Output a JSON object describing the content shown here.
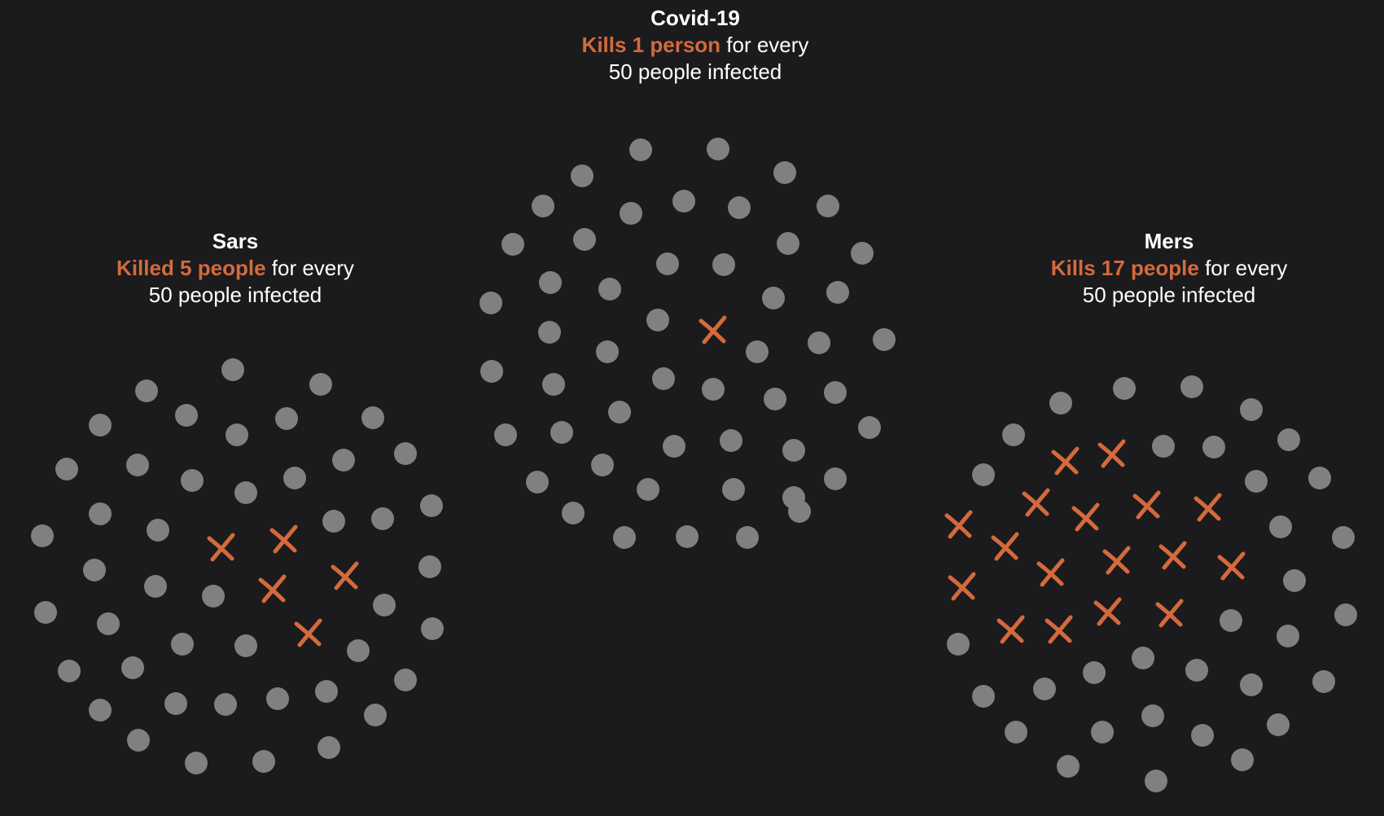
{
  "groups": [
    {
      "id": "covid",
      "name": "Covid-19",
      "stat": "Kills 1 person",
      "mid": "for every",
      "rest": "50 people infected",
      "total": 50,
      "deaths": 1
    },
    {
      "id": "sars",
      "name": "Sars",
      "stat": "Killed 5 people",
      "mid": "for every",
      "rest": "50 people infected",
      "total": 50,
      "deaths": 5
    },
    {
      "id": "mers",
      "name": "Mers",
      "stat": "Kills 17 people",
      "mid": "for every",
      "rest": "50 people infected",
      "total": 50,
      "deaths": 17
    }
  ],
  "colors": {
    "background": "#1b1b1d",
    "dot": "#808080",
    "death": "#d46a3c",
    "text": "#ffffff"
  },
  "icons": {
    "person": "grey-dot-icon",
    "death": "orange-cross-icon"
  }
}
